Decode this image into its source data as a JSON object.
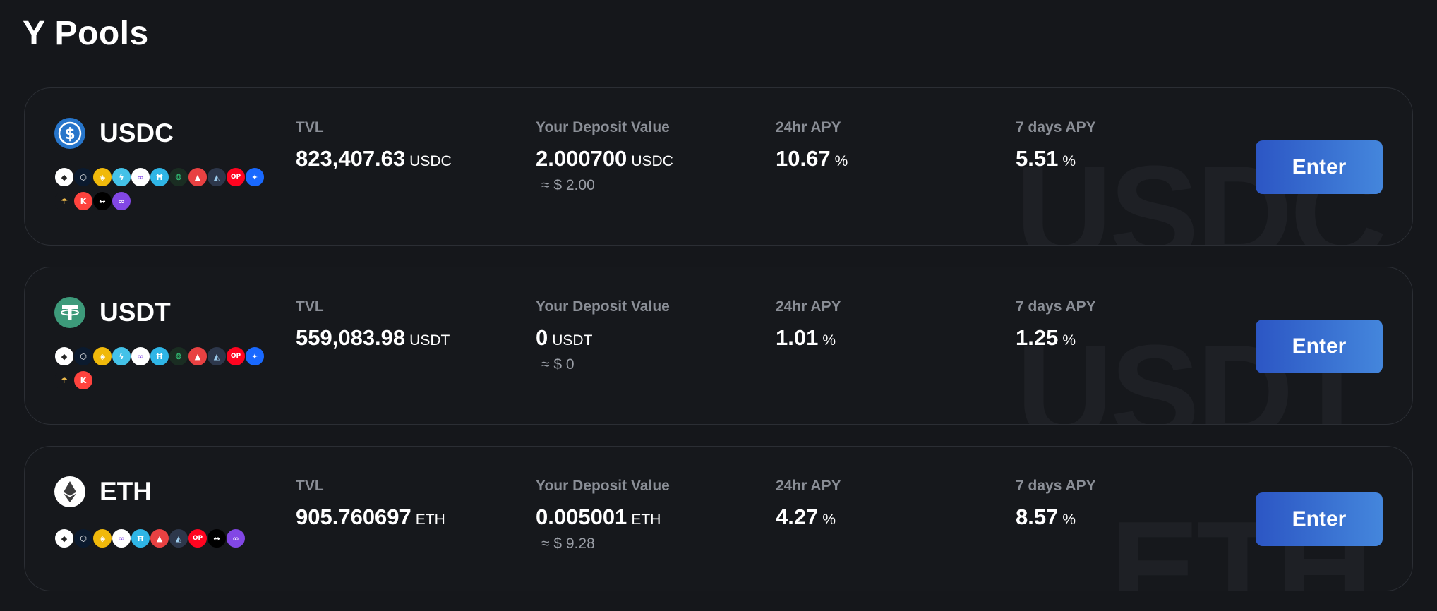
{
  "page": {
    "title": "Y Pools"
  },
  "labels": {
    "tvl": "TVL",
    "deposit": "Your Deposit Value",
    "apy24": "24hr APY",
    "apy7": "7 days APY",
    "percent": "%",
    "enter": "Enter"
  },
  "pools": [
    {
      "name": "USDC",
      "icon": "usdc-icon",
      "color": "#2775ca",
      "tvl": "823,407.63",
      "tvl_unit": "USDC",
      "deposit": "2.000700",
      "deposit_unit": "USDC",
      "deposit_usd": "≈ $ 2.00",
      "apy_24h": "10.67",
      "apy_7d": "5.51",
      "watermark": "USDC",
      "chains": [
        [
          "ethereum-icon",
          "cronos-icon",
          "bnb-chain-icon",
          "aurora-icon",
          "polygon-icon",
          "harmony-icon",
          "celo-icon",
          "avalanche-icon",
          "arbitrum-icon",
          "optimism-icon",
          "fantom-icon"
        ],
        [
          "moonbeam-icon",
          "kava-icon",
          "linea-icon",
          "polygon-zkevm-icon"
        ]
      ]
    },
    {
      "name": "USDT",
      "icon": "usdt-icon",
      "color": "#3d9a7a",
      "tvl": "559,083.98",
      "tvl_unit": "USDT",
      "deposit": "0",
      "deposit_unit": "USDT",
      "deposit_usd": "≈ $ 0",
      "apy_24h": "1.01",
      "apy_7d": "1.25",
      "watermark": "USDT",
      "chains": [
        [
          "ethereum-icon",
          "cronos-icon",
          "bnb-chain-icon",
          "aurora-icon",
          "polygon-icon",
          "harmony-icon",
          "celo-icon",
          "avalanche-icon",
          "arbitrum-icon",
          "optimism-icon",
          "fantom-icon"
        ],
        [
          "moonbeam-icon",
          "kava-icon"
        ]
      ]
    },
    {
      "name": "ETH",
      "icon": "eth-icon",
      "color": "#ffffff",
      "tvl": "905.760697",
      "tvl_unit": "ETH",
      "deposit": "0.005001",
      "deposit_unit": "ETH",
      "deposit_usd": "≈ $ 9.28",
      "apy_24h": "4.27",
      "apy_7d": "8.57",
      "watermark": "ETH",
      "chains": [
        [
          "ethereum-icon",
          "cronos-icon",
          "bnb-chain-icon",
          "polygon-icon",
          "harmony-icon",
          "avalanche-icon",
          "arbitrum-icon",
          "optimism-icon",
          "linea-icon",
          "polygon-zkevm-icon"
        ]
      ]
    }
  ]
}
